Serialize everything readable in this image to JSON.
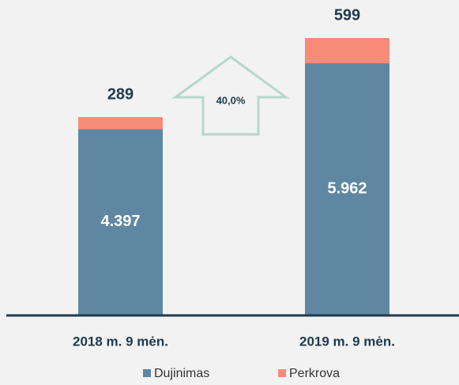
{
  "chart_data": {
    "type": "stacked_bar",
    "categories": [
      "2018 m. 9 mėn.",
      "2019 m. 9 mėn."
    ],
    "series": [
      {
        "name": "Dujinimas",
        "color": "#5f87a1",
        "values": [
          4397,
          5962
        ],
        "value_labels": [
          "4.397",
          "5.962"
        ]
      },
      {
        "name": "Perkrova",
        "color": "#f88b79",
        "values": [
          289,
          599
        ]
      }
    ],
    "ylim": [
      0,
      6900
    ],
    "annotation": "40,0%",
    "legend": "bottom"
  }
}
